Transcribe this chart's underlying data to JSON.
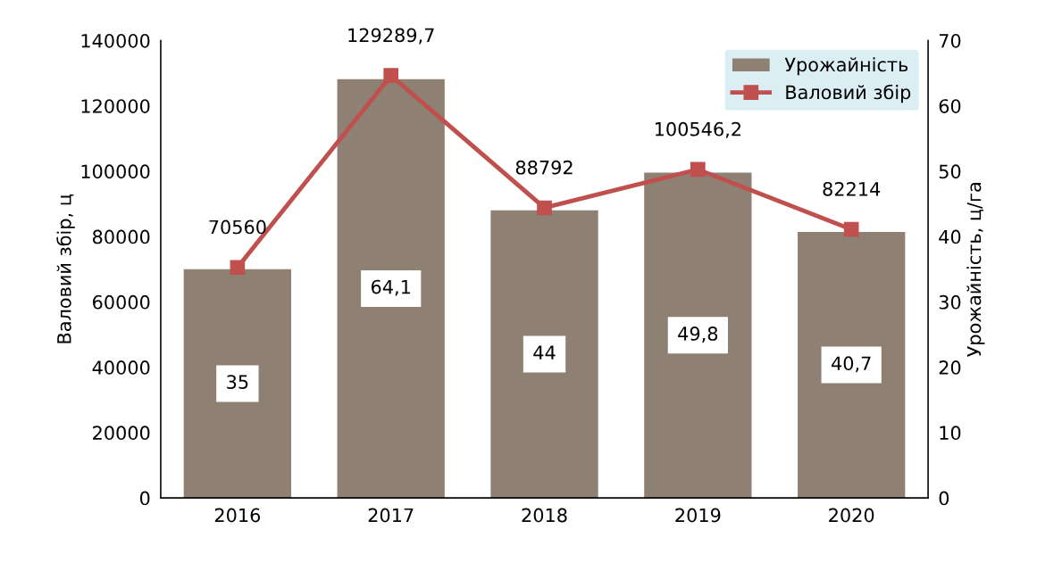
{
  "chart_data": {
    "type": "bar",
    "categories": [
      "2016",
      "2017",
      "2018",
      "2019",
      "2020"
    ],
    "ylabel": "Валовий збір, ц",
    "y2label": "Урожайність, ц/га",
    "ylim": [
      0,
      140000
    ],
    "yticks": [
      0,
      20000,
      40000,
      60000,
      80000,
      100000,
      120000,
      140000
    ],
    "y2lim": [
      0,
      70
    ],
    "y2ticks": [
      0,
      10,
      20,
      30,
      40,
      50,
      60,
      70
    ],
    "grid": false,
    "legend": "top right",
    "marker": "square",
    "series": [
      {
        "name": "Урожайність",
        "axis": "y2",
        "color": "#8f8074",
        "values": [
          35,
          64.1,
          44,
          49.8,
          40.7
        ],
        "value_labels": [
          "35",
          "64,1",
          "44",
          "49,8",
          "40,7"
        ]
      },
      {
        "name": "Валовий збір",
        "type": "line",
        "axis": "y",
        "color": "#c0504d",
        "values": [
          70560,
          129289.7,
          88792,
          100546.2,
          82214
        ],
        "value_labels": [
          "70560",
          "129289,7",
          "88792",
          "100546,2",
          "82214"
        ]
      }
    ]
  }
}
